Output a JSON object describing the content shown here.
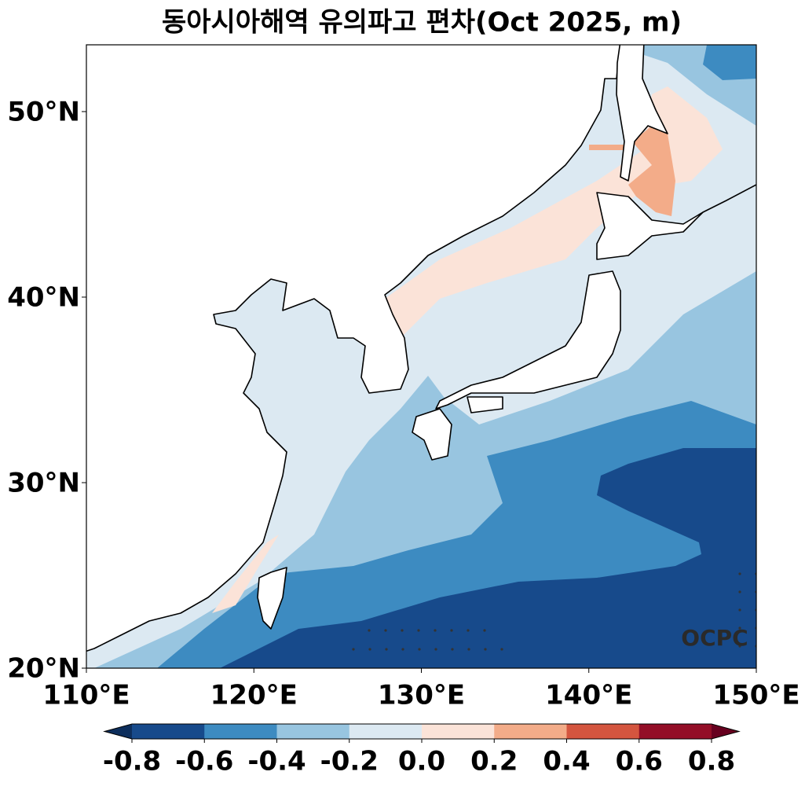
{
  "chart_data": {
    "type": "contour-map",
    "title": "동아시아해역 유의파고 편차(Oct 2025, m)",
    "xlim": [
      110,
      150
    ],
    "ylim": [
      20,
      53.6
    ],
    "xticks": [
      {
        "value": 110,
        "label": "110°E"
      },
      {
        "value": 120,
        "label": "120°E"
      },
      {
        "value": 130,
        "label": "130°E"
      },
      {
        "value": 140,
        "label": "140°E"
      },
      {
        "value": 150,
        "label": "150°E"
      }
    ],
    "yticks": [
      {
        "value": 20,
        "label": "20°N"
      },
      {
        "value": 30,
        "label": "30°N"
      },
      {
        "value": 40,
        "label": "40°N"
      },
      {
        "value": 50,
        "label": "50°N"
      }
    ],
    "annotation": "OCPC",
    "colorbar": {
      "lim": [
        -0.8,
        0.8
      ],
      "ticks": [
        -0.8,
        -0.6,
        -0.4,
        -0.2,
        {
          "value": 0,
          "label": "0.0"
        },
        0.2,
        0.4,
        0.6,
        0.8
      ],
      "colors": [
        "#174a8b",
        "#3d8bc1",
        "#98c5e0",
        "#dce9f2",
        "#fbe3d8",
        "#f3ac89",
        "#d4553f",
        "#930e27"
      ],
      "under": "#0d2e5c",
      "over": "#67001f"
    }
  }
}
